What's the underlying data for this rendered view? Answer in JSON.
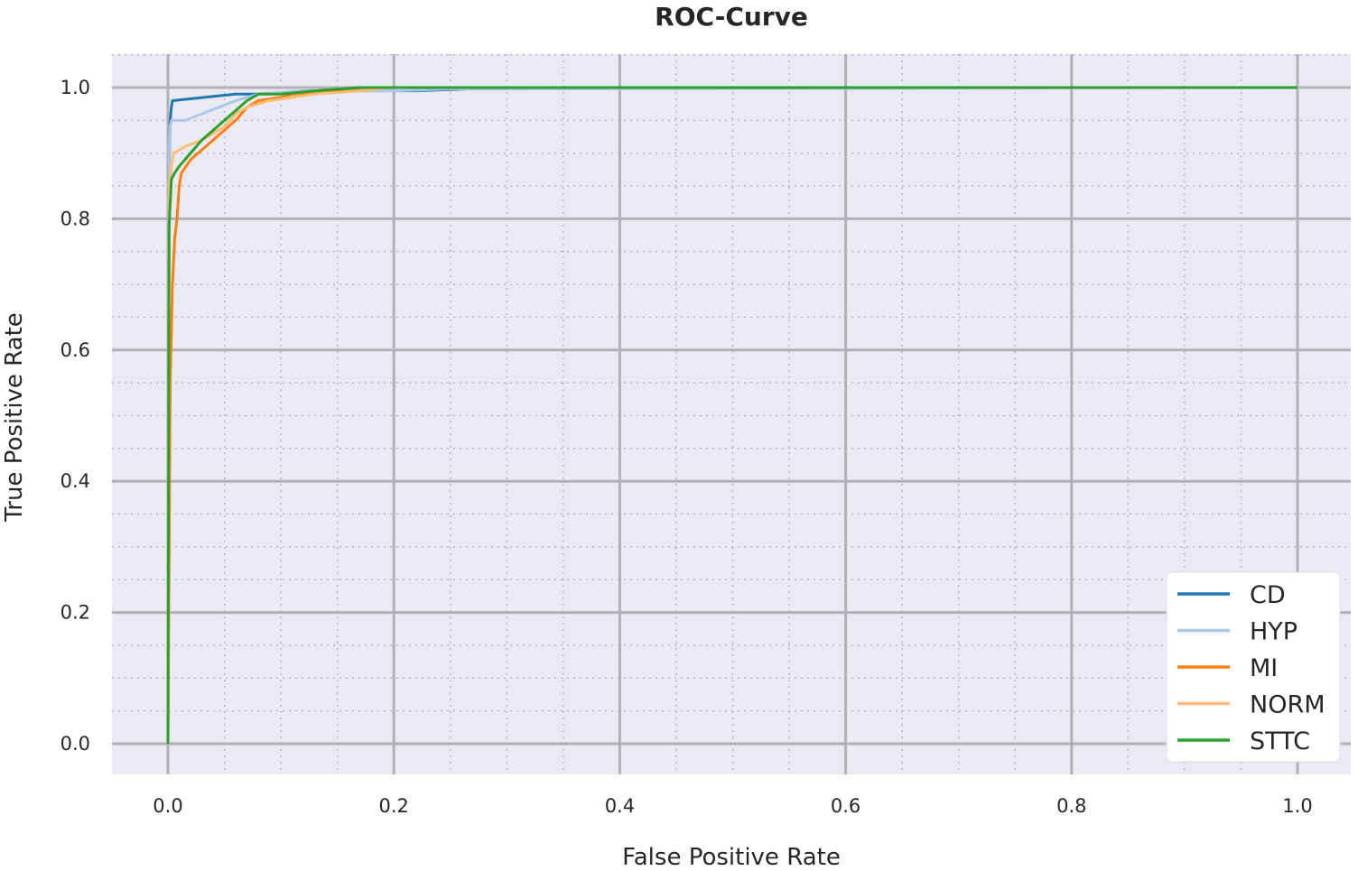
{
  "chart_data": {
    "type": "line",
    "title": "ROC-Curve",
    "xlabel": "False Positive Rate",
    "ylabel": "True Positive Rate",
    "xlim": [
      -0.05,
      1.02
    ],
    "ylim": [
      -0.05,
      1.05
    ],
    "x_ticks": [
      "0.0",
      "0.2",
      "0.4",
      "0.6",
      "0.8",
      "1.0"
    ],
    "y_ticks": [
      "0.0",
      "0.2",
      "0.4",
      "0.6",
      "0.8",
      "1.0"
    ],
    "x_tick_values": [
      0,
      0.2,
      0.4,
      0.6,
      0.8,
      1.0
    ],
    "y_tick_values": [
      0,
      0.2,
      0.4,
      0.6,
      0.8,
      1.0
    ],
    "grid": true,
    "minor_grid": true,
    "legend_position": "bottom-right",
    "series": [
      {
        "name": "CD",
        "color": "#1f77b4",
        "x": [
          0,
          0.001,
          0.002,
          0.003,
          0.004,
          0.06,
          0.08,
          0.12,
          0.15,
          0.22,
          0.3,
          1.0
        ],
        "y": [
          0,
          0.88,
          0.95,
          0.97,
          0.98,
          0.99,
          0.99,
          0.995,
          0.995,
          0.995,
          1.0,
          1.0
        ]
      },
      {
        "name": "HYP",
        "color": "#aec7e8",
        "x": [
          0,
          0.001,
          0.002,
          0.003,
          0.015,
          0.03,
          0.06,
          0.08,
          0.12,
          0.2,
          0.25,
          0.31,
          1.0
        ],
        "y": [
          0,
          0.9,
          0.94,
          0.95,
          0.95,
          0.96,
          0.98,
          0.99,
          0.995,
          0.995,
          0.998,
          0.998,
          1.0
        ]
      },
      {
        "name": "MI",
        "color": "#ff7f0e",
        "x": [
          0,
          0.002,
          0.004,
          0.006,
          0.008,
          0.01,
          0.012,
          0.02,
          0.04,
          0.06,
          0.07,
          0.08,
          0.1,
          0.11,
          0.15,
          0.18,
          1.0
        ],
        "y": [
          0,
          0.55,
          0.7,
          0.77,
          0.8,
          0.85,
          0.87,
          0.89,
          0.92,
          0.95,
          0.97,
          0.98,
          0.985,
          0.99,
          0.995,
          1.0,
          1.0
        ]
      },
      {
        "name": "NORM",
        "color": "#ffbb78",
        "x": [
          0,
          0.001,
          0.003,
          0.005,
          0.015,
          0.03,
          0.05,
          0.06,
          0.07,
          0.09,
          0.11,
          0.13,
          0.17,
          0.2,
          1.0
        ],
        "y": [
          0,
          0.85,
          0.88,
          0.9,
          0.91,
          0.92,
          0.94,
          0.96,
          0.97,
          0.98,
          0.985,
          0.99,
          0.995,
          1.0,
          1.0
        ]
      },
      {
        "name": "STTC",
        "color": "#2ca02c",
        "x": [
          0,
          0.001,
          0.003,
          0.006,
          0.01,
          0.02,
          0.03,
          0.05,
          0.07,
          0.08,
          0.1,
          0.13,
          0.17,
          0.2,
          1.0
        ],
        "y": [
          0,
          0.79,
          0.86,
          0.87,
          0.88,
          0.9,
          0.92,
          0.95,
          0.98,
          0.99,
          0.99,
          0.995,
          1.0,
          1.0,
          1.0
        ]
      }
    ]
  }
}
